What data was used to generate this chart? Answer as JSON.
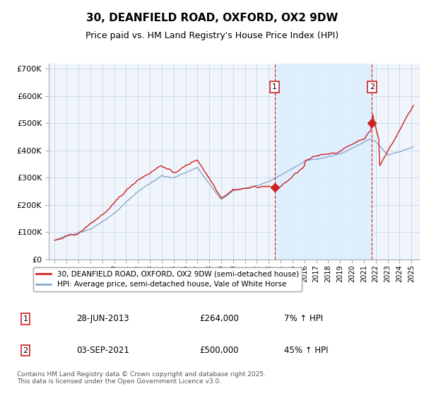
{
  "title": "30, DEANFIELD ROAD, OXFORD, OX2 9DW",
  "subtitle": "Price paid vs. HM Land Registry's House Price Index (HPI)",
  "title_fontsize": 11,
  "subtitle_fontsize": 9,
  "hpi_color": "#88aacc",
  "price_color": "#cc2222",
  "shade_color": "#ddeeff",
  "background_color": "#eef4fa",
  "plot_bg": "#f0f5fb",
  "ylim": [
    0,
    720000
  ],
  "yticks": [
    0,
    100000,
    200000,
    300000,
    400000,
    500000,
    600000,
    700000
  ],
  "ytick_labels": [
    "£0",
    "£100K",
    "£200K",
    "£300K",
    "£400K",
    "£500K",
    "£600K",
    "£700K"
  ],
  "xmin": 1994.5,
  "xmax": 2025.7,
  "sale1_x": 2013.49,
  "sale1_y": 264000,
  "sale1_label": "1",
  "sale2_x": 2021.67,
  "sale2_y": 500000,
  "sale2_label": "2",
  "legend_line1": "30, DEANFIELD ROAD, OXFORD, OX2 9DW (semi-detached house)",
  "legend_line2": "HPI: Average price, semi-detached house, Vale of White Horse",
  "info1_num": "1",
  "info1_date": "28-JUN-2013",
  "info1_price": "£264,000",
  "info1_hpi": "7% ↑ HPI",
  "info2_num": "2",
  "info2_date": "03-SEP-2021",
  "info2_price": "£500,000",
  "info2_hpi": "45% ↑ HPI",
  "footer": "Contains HM Land Registry data © Crown copyright and database right 2025.\nThis data is licensed under the Open Government Licence v3.0."
}
